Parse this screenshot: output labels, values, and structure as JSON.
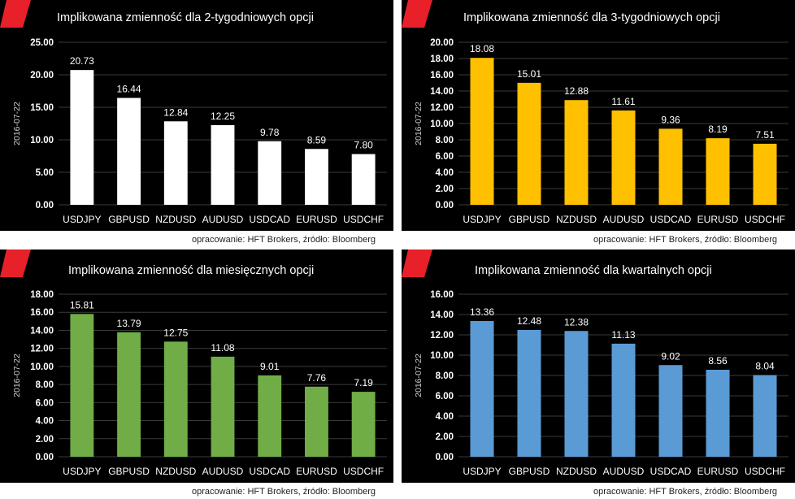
{
  "source_note": "opracowanie: HFT Brokers, źródło: Bloomberg",
  "accent_color": "#e8202a",
  "chart_data": [
    {
      "type": "bar",
      "title": "Implikowana zmienność dla 2-tygodniowych opcji",
      "ylabel": "2016-07-22",
      "xlabel": "",
      "categories": [
        "USDJPY",
        "GBPUSD",
        "NZDUSD",
        "AUDUSD",
        "USDCAD",
        "EURUSD",
        "USDCHF"
      ],
      "values": [
        20.73,
        16.44,
        12.84,
        12.25,
        9.78,
        8.59,
        7.8
      ],
      "value_labels": [
        "20.73",
        "16.44",
        "12.84",
        "12.25",
        "9.78",
        "8.59",
        "7.80"
      ],
      "yticks": [
        "0.00",
        "5.00",
        "10.00",
        "15.00",
        "20.00",
        "25.00"
      ],
      "ylim": [
        0,
        25
      ],
      "bar_color": "#ffffff",
      "grid": true,
      "legend": "none"
    },
    {
      "type": "bar",
      "title": "Implikowana zmienność dla 3-tygodniowych opcji",
      "ylabel": "2016-07-22",
      "xlabel": "",
      "categories": [
        "USDJPY",
        "GBPUSD",
        "NZDUSD",
        "AUDUSD",
        "USDCAD",
        "EURUSD",
        "USDCHF"
      ],
      "values": [
        18.08,
        15.01,
        12.88,
        11.61,
        9.36,
        8.19,
        7.51
      ],
      "value_labels": [
        "18.08",
        "15.01",
        "12.88",
        "11.61",
        "9.36",
        "8.19",
        "7.51"
      ],
      "yticks": [
        "0.00",
        "2.00",
        "4.00",
        "6.00",
        "8.00",
        "10.00",
        "12.00",
        "14.00",
        "16.00",
        "18.00",
        "20.00"
      ],
      "ylim": [
        0,
        20
      ],
      "bar_color": "#ffc000",
      "grid": true,
      "legend": "none"
    },
    {
      "type": "bar",
      "title": "Implikowana zmienność dla miesięcznych opcji",
      "ylabel": "2016-07-22",
      "xlabel": "",
      "categories": [
        "USDJPY",
        "GBPUSD",
        "NZDUSD",
        "AUDUSD",
        "USDCAD",
        "EURUSD",
        "USDCHF"
      ],
      "values": [
        15.81,
        13.79,
        12.75,
        11.08,
        9.01,
        7.76,
        7.19
      ],
      "value_labels": [
        "15.81",
        "13.79",
        "12.75",
        "11.08",
        "9.01",
        "7.76",
        "7.19"
      ],
      "yticks": [
        "0.00",
        "2.00",
        "4.00",
        "6.00",
        "8.00",
        "10.00",
        "12.00",
        "14.00",
        "16.00",
        "18.00"
      ],
      "ylim": [
        0,
        18
      ],
      "bar_color": "#70ad47",
      "grid": true,
      "legend": "none"
    },
    {
      "type": "bar",
      "title": "Implikowana zmienność dla kwartalnych opcji",
      "ylabel": "2016-07-22",
      "xlabel": "",
      "categories": [
        "USDJPY",
        "GBPUSD",
        "NZDUSD",
        "AUDUSD",
        "USDCAD",
        "EURUSD",
        "USDCHF"
      ],
      "values": [
        13.36,
        12.48,
        12.38,
        11.13,
        9.02,
        8.56,
        8.04
      ],
      "value_labels": [
        "13.36",
        "12.48",
        "12.38",
        "11.13",
        "9.02",
        "8.56",
        "8.04"
      ],
      "yticks": [
        "0.00",
        "2.00",
        "4.00",
        "6.00",
        "8.00",
        "10.00",
        "12.00",
        "14.00",
        "16.00"
      ],
      "ylim": [
        0,
        16
      ],
      "bar_color": "#5b9bd5",
      "grid": true,
      "legend": "none"
    }
  ]
}
